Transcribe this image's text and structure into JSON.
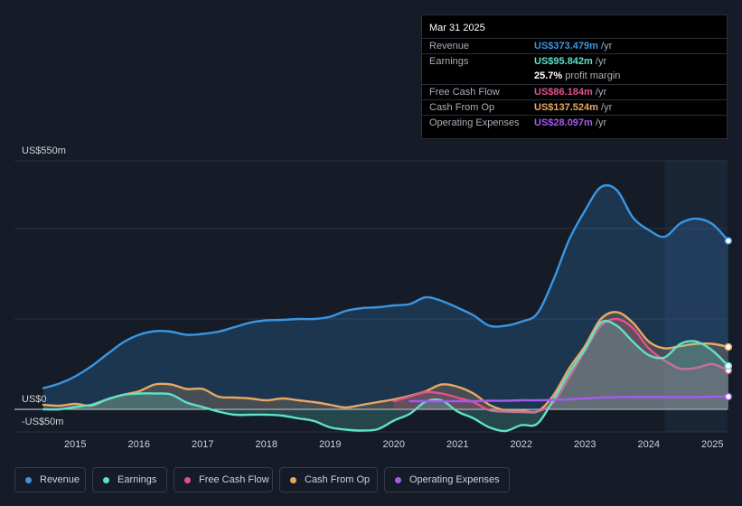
{
  "tooltip": {
    "date": "Mar 31 2025",
    "rows": [
      {
        "label": "Revenue",
        "value": "US$373.479m",
        "unit": " /yr",
        "color": "#3a96e2"
      },
      {
        "label": "Earnings",
        "value": "US$95.842m",
        "unit": " /yr",
        "color": "#5ee1c9"
      },
      {
        "label": "",
        "value": "25.7%",
        "unit": " profit margin",
        "color": "#ffffff"
      },
      {
        "label": "Free Cash Flow",
        "value": "US$86.184m",
        "unit": " /yr",
        "color": "#e0538a"
      },
      {
        "label": "Cash From Op",
        "value": "US$137.524m",
        "unit": " /yr",
        "color": "#e9a862"
      },
      {
        "label": "Operating Expenses",
        "value": "US$28.097m",
        "unit": " /yr",
        "color": "#a35bf0"
      }
    ]
  },
  "legend": [
    {
      "label": "Revenue",
      "color": "#3a96e2"
    },
    {
      "label": "Earnings",
      "color": "#5ee1c9"
    },
    {
      "label": "Free Cash Flow",
      "color": "#e0538a"
    },
    {
      "label": "Cash From Op",
      "color": "#e9a862"
    },
    {
      "label": "Operating Expenses",
      "color": "#a35bf0"
    }
  ],
  "chart_data": {
    "type": "line",
    "title": "",
    "xlabel": "",
    "ylabel": "",
    "ylim": [
      -50,
      550
    ],
    "y_tick_labels": [
      "US$550m",
      "US$0",
      "-US$50m"
    ],
    "x_tick_labels": [
      "2015",
      "2016",
      "2017",
      "2018",
      "2019",
      "2020",
      "2021",
      "2022",
      "2023",
      "2024",
      "2025"
    ],
    "xlim": [
      2014.5,
      2025.25
    ],
    "highlight_from": 2024.25,
    "series": [
      {
        "name": "Revenue",
        "color": "#3a96e2",
        "x": [
          2014.5,
          2014.75,
          2015.0,
          2015.25,
          2015.5,
          2015.75,
          2016.0,
          2016.25,
          2016.5,
          2016.75,
          2017.0,
          2017.25,
          2017.5,
          2017.75,
          2018.0,
          2018.25,
          2018.5,
          2018.75,
          2019.0,
          2019.25,
          2019.5,
          2019.75,
          2020.0,
          2020.25,
          2020.5,
          2020.75,
          2021.0,
          2021.25,
          2021.5,
          2021.75,
          2022.0,
          2022.25,
          2022.5,
          2022.75,
          2023.0,
          2023.25,
          2023.5,
          2023.75,
          2024.0,
          2024.25,
          2024.5,
          2024.75,
          2025.0,
          2025.25
        ],
        "values": [
          47,
          57,
          73,
          95,
          122,
          148,
          165,
          173,
          172,
          165,
          167,
          172,
          182,
          192,
          197,
          198,
          200,
          200,
          205,
          218,
          224,
          226,
          230,
          233,
          248,
          240,
          225,
          208,
          185,
          185,
          194,
          212,
          285,
          375,
          440,
          492,
          485,
          425,
          397,
          382,
          412,
          422,
          410,
          373
        ]
      },
      {
        "name": "Earnings",
        "color": "#5ee1c9",
        "x": [
          2014.5,
          2014.75,
          2015.0,
          2015.25,
          2015.5,
          2015.75,
          2016.0,
          2016.25,
          2016.5,
          2016.75,
          2017.0,
          2017.25,
          2017.5,
          2017.75,
          2018.0,
          2018.25,
          2018.5,
          2018.75,
          2019.0,
          2019.25,
          2019.5,
          2019.75,
          2020.0,
          2020.25,
          2020.5,
          2020.75,
          2021.0,
          2021.25,
          2021.5,
          2021.75,
          2022.0,
          2022.25,
          2022.5,
          2022.75,
          2023.0,
          2023.25,
          2023.5,
          2023.75,
          2024.0,
          2024.25,
          2024.5,
          2024.75,
          2025.0,
          2025.25
        ],
        "values": [
          0,
          0,
          5,
          10,
          22,
          32,
          35,
          35,
          33,
          15,
          5,
          -5,
          -12,
          -12,
          -12,
          -14,
          -20,
          -26,
          -40,
          -45,
          -47,
          -44,
          -25,
          -10,
          17,
          20,
          -5,
          -20,
          -40,
          -48,
          -35,
          -32,
          20,
          80,
          133,
          192,
          185,
          150,
          120,
          115,
          145,
          150,
          130,
          96
        ]
      },
      {
        "name": "Free Cash Flow",
        "color": "#e0538a",
        "x": [
          2020.0,
          2020.25,
          2020.5,
          2020.75,
          2021.0,
          2021.25,
          2021.5,
          2021.75,
          2022.0,
          2022.25,
          2022.5,
          2022.75,
          2023.0,
          2023.25,
          2023.5,
          2023.75,
          2024.0,
          2024.25,
          2024.5,
          2024.75,
          2025.0,
          2025.25
        ],
        "values": [
          18,
          28,
          38,
          35,
          26,
          16,
          -2,
          -5,
          -6,
          -5,
          15,
          70,
          130,
          185,
          200,
          180,
          135,
          108,
          90,
          92,
          100,
          86
        ]
      },
      {
        "name": "Cash From Op",
        "color": "#e9a862",
        "x": [
          2014.5,
          2014.75,
          2015.0,
          2015.25,
          2015.5,
          2015.75,
          2016.0,
          2016.25,
          2016.5,
          2016.75,
          2017.0,
          2017.25,
          2017.5,
          2017.75,
          2018.0,
          2018.25,
          2018.5,
          2018.75,
          2019.0,
          2019.25,
          2019.5,
          2019.75,
          2020.0,
          2020.25,
          2020.5,
          2020.75,
          2021.0,
          2021.25,
          2021.5,
          2021.75,
          2022.0,
          2022.25,
          2022.5,
          2022.75,
          2023.0,
          2023.25,
          2023.5,
          2023.75,
          2024.0,
          2024.25,
          2024.5,
          2024.75,
          2025.0,
          2025.25
        ],
        "values": [
          10,
          8,
          12,
          8,
          22,
          32,
          40,
          55,
          55,
          45,
          45,
          28,
          26,
          24,
          20,
          24,
          20,
          16,
          10,
          4,
          10,
          16,
          22,
          30,
          40,
          55,
          50,
          35,
          10,
          -2,
          -2,
          -5,
          30,
          90,
          140,
          200,
          215,
          192,
          150,
          135,
          140,
          145,
          145,
          138
        ]
      },
      {
        "name": "Operating Expenses",
        "color": "#a35bf0",
        "x": [
          2020.25,
          2020.5,
          2020.75,
          2021.0,
          2021.25,
          2021.5,
          2021.75,
          2022.0,
          2022.25,
          2022.5,
          2022.75,
          2023.0,
          2023.25,
          2023.5,
          2023.75,
          2024.0,
          2024.25,
          2024.5,
          2024.75,
          2025.0,
          2025.25
        ],
        "values": [
          18,
          18,
          18,
          18,
          18,
          19,
          19,
          20,
          20,
          21,
          22,
          24,
          26,
          27,
          27,
          27,
          27,
          27,
          27,
          28,
          28
        ]
      }
    ]
  }
}
